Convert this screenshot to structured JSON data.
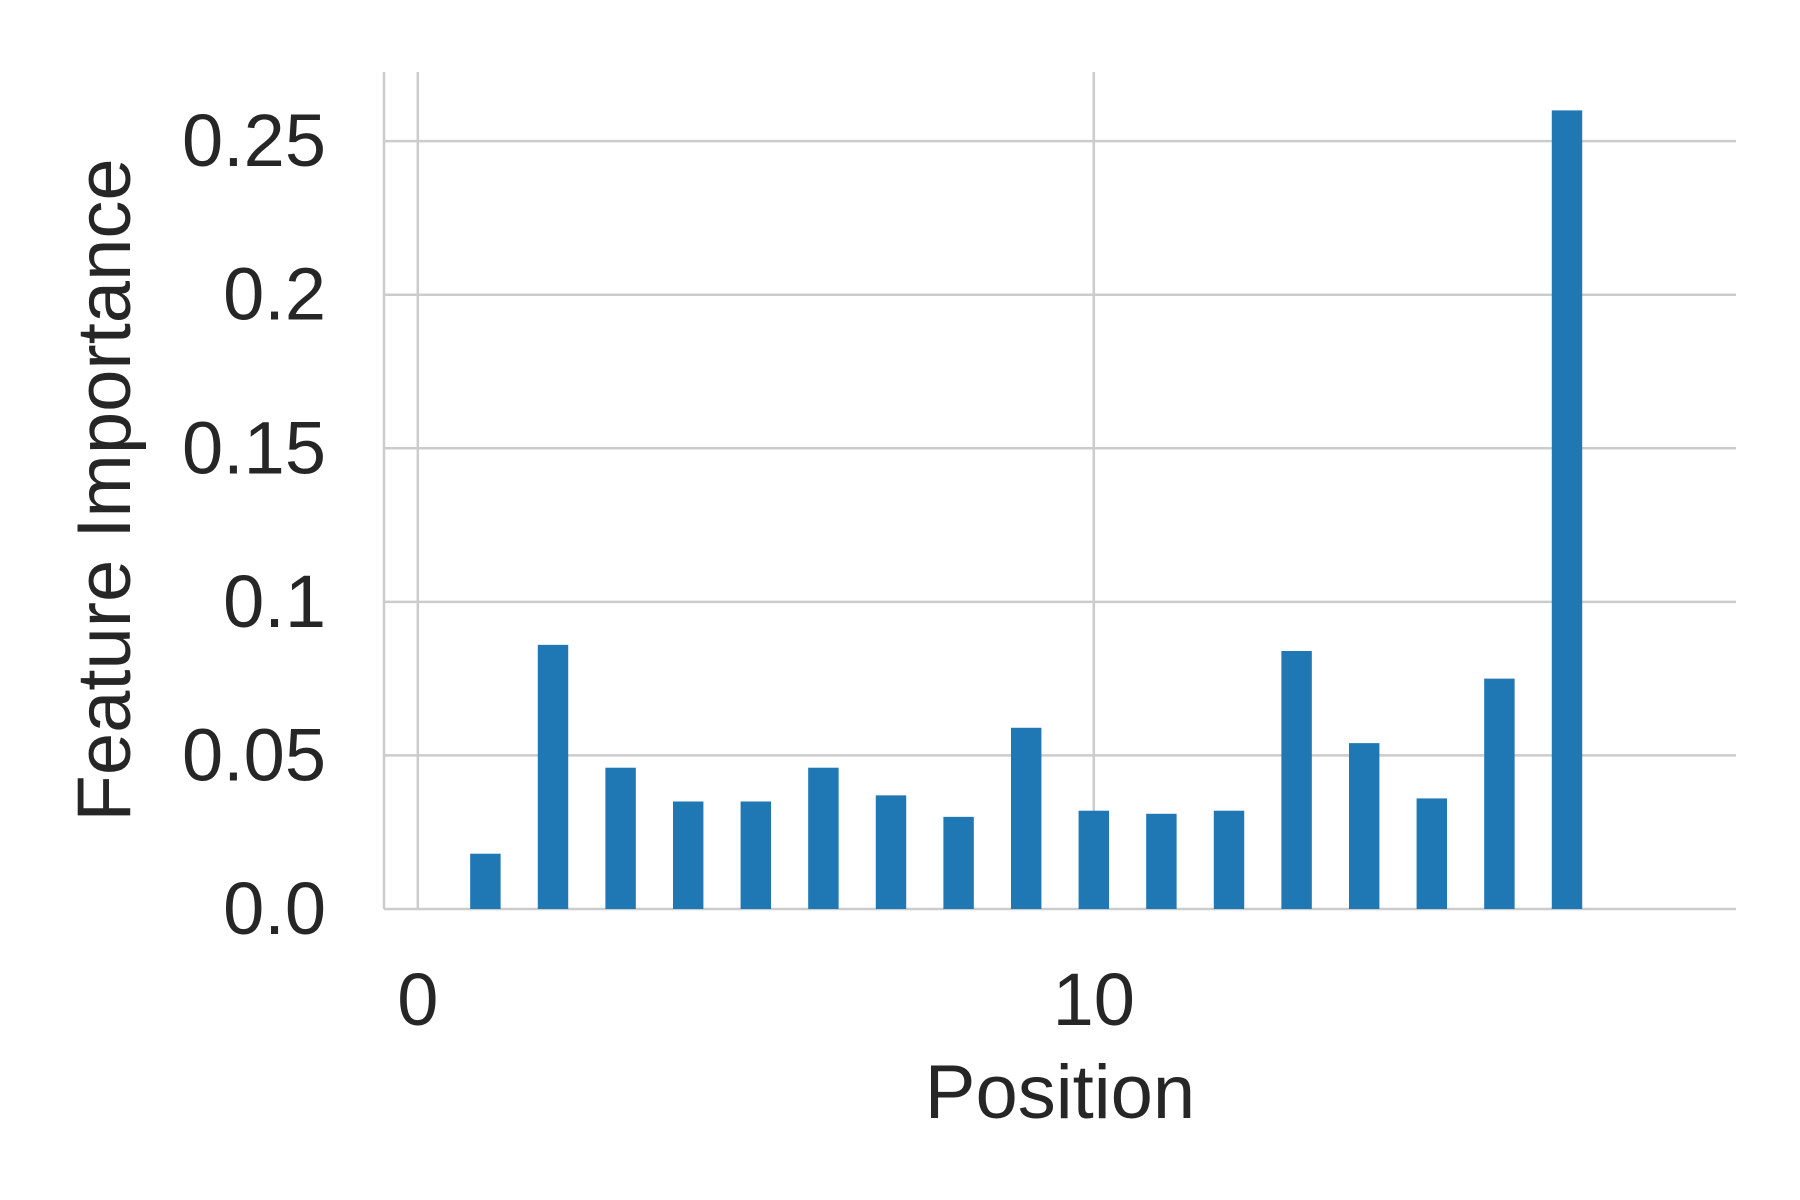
{
  "chart_data": {
    "type": "bar",
    "title": "",
    "xlabel": "Position",
    "ylabel": "Feature Importance",
    "x": [
      1,
      2,
      3,
      4,
      5,
      6,
      7,
      8,
      9,
      10,
      11,
      12,
      13,
      14,
      15,
      16,
      17
    ],
    "values": [
      0.018,
      0.086,
      0.046,
      0.035,
      0.035,
      0.046,
      0.037,
      0.03,
      0.059,
      0.032,
      0.031,
      0.032,
      0.084,
      0.054,
      0.036,
      0.075,
      0.26
    ],
    "xlim": [
      -0.5,
      19.5
    ],
    "ylim": [
      0,
      0.2725
    ],
    "xticks": [
      0,
      10
    ],
    "xtick_labels": [
      "0",
      "10"
    ],
    "yticks": [
      0,
      0.05,
      0.1,
      0.15,
      0.2,
      0.25
    ],
    "ytick_labels": [
      "0.0",
      "0.05",
      "0.1",
      "0.15",
      "0.2",
      "0.25"
    ],
    "bar_color": "#1f77b4",
    "grid": true
  }
}
